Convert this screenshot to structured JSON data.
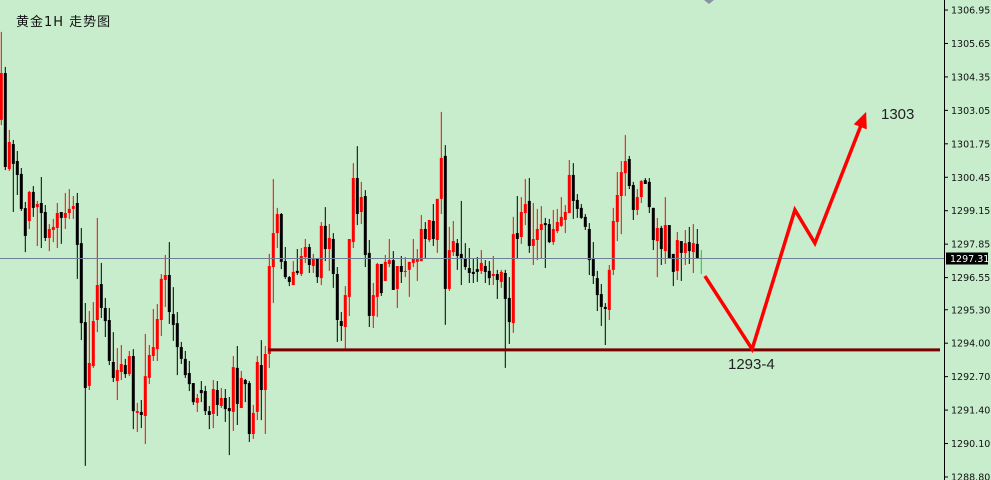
{
  "title": "黄金1H 走势图",
  "colors": {
    "background": "#c7edcc",
    "bull": "#ff0000",
    "bear": "#000000",
    "current": "#00e000",
    "support": "#7a0000",
    "arrow": "#ff0000",
    "price_line": "#708090",
    "axis": "#000000"
  },
  "chart_data": {
    "type": "candlestick",
    "title": "黄金1H 走势图",
    "timeframe": "1H",
    "yaxis_position": "right",
    "ylim": [
      1288.8,
      1307.34
    ],
    "yticks": [
      "1306.95",
      "1305.65",
      "1304.35",
      "1303.05",
      "1301.75",
      "1300.45",
      "1299.15",
      "1297.85",
      "1296.55",
      "1295.30",
      "1294.00",
      "1292.70",
      "1291.40",
      "1290.10",
      "1288.80"
    ],
    "current_price": "1297.31",
    "ohlc_fields": [
      "open",
      "high",
      "low",
      "close"
    ],
    "candles": [
      [
        1302.68,
        1306.1,
        1302.48,
        1304.5
      ],
      [
        1304.5,
        1304.74,
        1300.73,
        1300.85
      ],
      [
        1300.77,
        1302.29,
        1300.69,
        1301.82
      ],
      [
        1301.74,
        1301.9,
        1299.1,
        1300.97
      ],
      [
        1301.08,
        1301.47,
        1299.76,
        1300.54
      ],
      [
        1300.58,
        1300.81,
        1299.14,
        1299.22
      ],
      [
        1299.25,
        1299.49,
        1297.54,
        1298.17
      ],
      [
        1298.75,
        1299.92,
        1298.44,
        1299.88
      ],
      [
        1299.88,
        1300.11,
        1298.91,
        1299.26
      ],
      [
        1299.29,
        1299.53,
        1297.78,
        1299.41
      ],
      [
        1299.45,
        1300.46,
        1297.7,
        1299.06
      ],
      [
        1299.1,
        1299.37,
        1297.97,
        1298.09
      ],
      [
        1298.09,
        1298.63,
        1297.58,
        1298.44
      ],
      [
        1298.4,
        1298.83,
        1297.93,
        1298.52
      ],
      [
        1298.48,
        1299.45,
        1297.7,
        1299.06
      ],
      [
        1299.1,
        1299.1,
        1297.86,
        1298.87
      ],
      [
        1298.87,
        1299.84,
        1298.44,
        1299.06
      ],
      [
        1299.06,
        1299.99,
        1298.83,
        1299.22
      ],
      [
        1299.22,
        1299.72,
        1298.83,
        1299.33
      ],
      [
        1299.45,
        1299.84,
        1296.5,
        1297.82
      ],
      [
        1297.89,
        1298.48,
        1294.12,
        1294.78
      ],
      [
        1294.82,
        1295.56,
        1289.23,
        1292.26
      ],
      [
        1292.34,
        1295.25,
        1292.18,
        1293.23
      ],
      [
        1293.11,
        1295.6,
        1293.04,
        1294.86
      ],
      [
        1294.9,
        1298.87,
        1294.43,
        1296.26
      ],
      [
        1296.3,
        1297.12,
        1294.98,
        1295.37
      ],
      [
        1295.37,
        1295.76,
        1294.24,
        1294.86
      ],
      [
        1294.9,
        1295.37,
        1293.15,
        1293.31
      ],
      [
        1293.27,
        1294.43,
        1292.49,
        1292.65
      ],
      [
        1292.53,
        1293.81,
        1291.79,
        1292.96
      ],
      [
        1292.88,
        1293.93,
        1292.57,
        1293.19
      ],
      [
        1293.15,
        1293.39,
        1292.65,
        1292.8
      ],
      [
        1292.8,
        1293.7,
        1292.72,
        1293.5
      ],
      [
        1293.5,
        1293.77,
        1290.66,
        1291.36
      ],
      [
        1291.29,
        1291.68,
        1290.55,
        1291.36
      ],
      [
        1291.33,
        1291.79,
        1290.7,
        1291.21
      ],
      [
        1291.17,
        1294.36,
        1290.08,
        1292.72
      ],
      [
        1292.65,
        1293.93,
        1292.41,
        1293.54
      ],
      [
        1293.5,
        1295.33,
        1293.31,
        1293.85
      ],
      [
        1293.77,
        1295.52,
        1293.31,
        1294.94
      ],
      [
        1294.9,
        1296.69,
        1294.28,
        1296.5
      ],
      [
        1296.46,
        1297.43,
        1295.41,
        1296.65
      ],
      [
        1296.65,
        1297.93,
        1294.75,
        1295.21
      ],
      [
        1295.13,
        1296.18,
        1294.09,
        1294.71
      ],
      [
        1294.78,
        1295.21,
        1292.76,
        1293.85
      ],
      [
        1293.85,
        1294.05,
        1293.19,
        1293.39
      ],
      [
        1293.39,
        1293.7,
        1292.65,
        1292.76
      ],
      [
        1292.84,
        1293.31,
        1292.14,
        1292.41
      ],
      [
        1292.45,
        1292.45,
        1291.6,
        1291.71
      ],
      [
        1291.68,
        1292.03,
        1291.33,
        1291.87
      ],
      [
        1292.18,
        1292.53,
        1291.71,
        1292.06
      ],
      [
        1292.14,
        1292.34,
        1291.21,
        1291.36
      ],
      [
        1291.36,
        1291.56,
        1290.66,
        1291.21
      ],
      [
        1291.25,
        1292.57,
        1290.7,
        1292.22
      ],
      [
        1292.18,
        1292.53,
        1291.17,
        1291.6
      ],
      [
        1291.56,
        1292.26,
        1291.48,
        1291.87
      ],
      [
        1291.87,
        1292.22,
        1290.94,
        1291.44
      ],
      [
        1291.48,
        1291.91,
        1289.65,
        1291.36
      ],
      [
        1291.33,
        1293.5,
        1290.59,
        1293.07
      ],
      [
        1293.04,
        1293.89,
        1290.82,
        1291.64
      ],
      [
        1291.48,
        1292.92,
        1291.48,
        1292.65
      ],
      [
        1292.57,
        1292.61,
        1291.71,
        1292.41
      ],
      [
        1292.45,
        1292.53,
        1290.16,
        1290.47
      ],
      [
        1290.47,
        1291.6,
        1290.28,
        1291.29
      ],
      [
        1291.33,
        1293.5,
        1291.01,
        1293.27
      ],
      [
        1293.15,
        1294.12,
        1291.01,
        1292.18
      ],
      [
        1292.18,
        1293.89,
        1290.47,
        1293.58
      ],
      [
        1293.58,
        1297.47,
        1293.04,
        1297.0
      ],
      [
        1296.96,
        1300.38,
        1295.56,
        1298.28
      ],
      [
        1298.28,
        1299.26,
        1297.7,
        1299.02
      ],
      [
        1299.02,
        1299.06,
        1296.88,
        1297.16
      ],
      [
        1297.19,
        1297.74,
        1296.5,
        1296.57
      ],
      [
        1296.57,
        1296.61,
        1296.22,
        1296.38
      ],
      [
        1296.26,
        1297.19,
        1296.26,
        1296.77
      ],
      [
        1296.81,
        1297.66,
        1296.65,
        1296.73
      ],
      [
        1296.69,
        1297.7,
        1296.61,
        1297.39
      ],
      [
        1297.35,
        1298.05,
        1297.12,
        1297.74
      ],
      [
        1297.74,
        1297.86,
        1296.73,
        1297.04
      ],
      [
        1297.0,
        1297.47,
        1296.73,
        1297.31
      ],
      [
        1297.31,
        1297.31,
        1296.34,
        1296.57
      ],
      [
        1296.53,
        1298.71,
        1296.26,
        1298.56
      ],
      [
        1298.56,
        1299.29,
        1297.19,
        1297.66
      ],
      [
        1297.66,
        1298.63,
        1296.81,
        1298.09
      ],
      [
        1298.05,
        1298.28,
        1296.15,
        1296.69
      ],
      [
        1296.69,
        1296.96,
        1294.05,
        1294.9
      ],
      [
        1294.86,
        1295.21,
        1294.09,
        1294.67
      ],
      [
        1294.63,
        1296.22,
        1293.74,
        1295.87
      ],
      [
        1295.8,
        1298.05,
        1295.06,
        1298.05
      ],
      [
        1297.93,
        1301.0,
        1297.7,
        1300.42
      ],
      [
        1300.42,
        1301.66,
        1298.59,
        1299.02
      ],
      [
        1299.1,
        1300.27,
        1298.63,
        1299.68
      ],
      [
        1299.72,
        1299.95,
        1296.96,
        1297.43
      ],
      [
        1297.51,
        1298.01,
        1294.63,
        1295.06
      ],
      [
        1295.06,
        1296.34,
        1294.59,
        1295.87
      ],
      [
        1295.8,
        1297.12,
        1295.02,
        1297.08
      ],
      [
        1297.08,
        1297.08,
        1295.84,
        1295.95
      ],
      [
        1296.42,
        1297.43,
        1296.42,
        1297.16
      ],
      [
        1297.08,
        1298.05,
        1296.96,
        1297.23
      ],
      [
        1297.23,
        1297.58,
        1296.07,
        1296.07
      ],
      [
        1296.11,
        1297.0,
        1295.37,
        1297.0
      ],
      [
        1297.0,
        1297.39,
        1296.34,
        1296.77
      ],
      [
        1296.77,
        1297.35,
        1296.57,
        1296.81
      ],
      [
        1296.85,
        1297.16,
        1295.8,
        1297.16
      ],
      [
        1297.12,
        1298.05,
        1296.96,
        1297.31
      ],
      [
        1297.16,
        1297.66,
        1296.42,
        1297.27
      ],
      [
        1297.19,
        1298.98,
        1297.19,
        1298.44
      ],
      [
        1298.44,
        1298.71,
        1297.31,
        1298.05
      ],
      [
        1298.01,
        1298.79,
        1297.93,
        1298.79
      ],
      [
        1298.75,
        1299.41,
        1297.78,
        1298.05
      ],
      [
        1298.01,
        1299.61,
        1297.51,
        1299.61
      ],
      [
        1299.61,
        1302.99,
        1299.02,
        1301.2
      ],
      [
        1301.28,
        1301.7,
        1294.71,
        1296.11
      ],
      [
        1296.11,
        1298.52,
        1296.03,
        1297.62
      ],
      [
        1297.54,
        1298.75,
        1297.39,
        1297.97
      ],
      [
        1297.89,
        1298.05,
        1296.85,
        1297.39
      ],
      [
        1297.47,
        1299.53,
        1296.26,
        1297.27
      ],
      [
        1297.31,
        1297.89,
        1296.85,
        1296.96
      ],
      [
        1296.92,
        1297.7,
        1296.34,
        1296.73
      ],
      [
        1296.77,
        1297.27,
        1296.34,
        1296.69
      ],
      [
        1296.88,
        1297.35,
        1296.38,
        1296.77
      ],
      [
        1296.81,
        1297.62,
        1296.69,
        1297.12
      ],
      [
        1297.0,
        1297.23,
        1296.34,
        1296.77
      ],
      [
        1296.81,
        1297.19,
        1296.26,
        1296.53
      ],
      [
        1296.61,
        1297.39,
        1296.26,
        1296.69
      ],
      [
        1296.69,
        1296.85,
        1295.72,
        1296.46
      ],
      [
        1296.38,
        1296.85,
        1296.15,
        1296.77
      ],
      [
        1296.73,
        1296.85,
        1293.04,
        1295.72
      ],
      [
        1295.76,
        1296.57,
        1293.97,
        1294.82
      ],
      [
        1294.78,
        1298.91,
        1294.4,
        1298.24
      ],
      [
        1298.28,
        1299.72,
        1297.27,
        1298.05
      ],
      [
        1298.13,
        1299.68,
        1297.86,
        1299.1
      ],
      [
        1299.06,
        1300.38,
        1298.59,
        1299.41
      ],
      [
        1299.53,
        1300.42,
        1297.51,
        1297.78
      ],
      [
        1297.78,
        1299.45,
        1297.04,
        1298.05
      ],
      [
        1298.01,
        1299.22,
        1297.23,
        1298.44
      ],
      [
        1298.4,
        1299.33,
        1297.31,
        1298.63
      ],
      [
        1298.67,
        1298.87,
        1296.92,
        1298.59
      ],
      [
        1298.63,
        1298.83,
        1297.89,
        1297.93
      ],
      [
        1297.93,
        1299.18,
        1297.82,
        1298.44
      ],
      [
        1298.36,
        1299.22,
        1298.28,
        1298.71
      ],
      [
        1298.56,
        1299.68,
        1298.52,
        1298.91
      ],
      [
        1298.79,
        1299.37,
        1298.28,
        1299.1
      ],
      [
        1299.06,
        1301.12,
        1299.06,
        1300.54
      ],
      [
        1300.54,
        1301.0,
        1298.83,
        1299.53
      ],
      [
        1299.57,
        1299.8,
        1298.87,
        1299.22
      ],
      [
        1299.26,
        1299.41,
        1298.83,
        1298.87
      ],
      [
        1298.91,
        1299.02,
        1298.4,
        1298.52
      ],
      [
        1298.44,
        1298.67,
        1296.65,
        1297.23
      ],
      [
        1297.27,
        1297.93,
        1296.3,
        1296.61
      ],
      [
        1296.53,
        1296.81,
        1295.25,
        1295.87
      ],
      [
        1295.91,
        1296.3,
        1294.67,
        1295.41
      ],
      [
        1295.41,
        1295.56,
        1293.93,
        1295.33
      ],
      [
        1295.29,
        1297.04,
        1294.9,
        1296.85
      ],
      [
        1296.85,
        1299.26,
        1296.65,
        1298.75
      ],
      [
        1298.71,
        1300.65,
        1297.97,
        1299.76
      ],
      [
        1299.72,
        1301.08,
        1298.24,
        1300.65
      ],
      [
        1300.61,
        1302.09,
        1299.72,
        1301.08
      ],
      [
        1301.16,
        1301.28,
        1299.99,
        1300.11
      ],
      [
        1300.15,
        1300.27,
        1298.79,
        1299.18
      ],
      [
        1299.18,
        1299.99,
        1298.98,
        1299.68
      ],
      [
        1299.68,
        1300.34,
        1299.45,
        1300.3
      ],
      [
        1300.34,
        1300.42,
        1300.19,
        1300.19
      ],
      [
        1300.27,
        1300.42,
        1299.06,
        1299.29
      ],
      [
        1299.26,
        1299.26,
        1297.62,
        1298.01
      ],
      [
        1297.97,
        1298.87,
        1296.57,
        1298.48
      ],
      [
        1298.48,
        1298.56,
        1297.04,
        1297.66
      ],
      [
        1297.58,
        1299.68,
        1297.08,
        1298.59
      ],
      [
        1298.59,
        1298.59,
        1297.31,
        1297.31
      ],
      [
        1297.47,
        1297.47,
        1296.22,
        1296.77
      ],
      [
        1296.81,
        1298.32,
        1296.46,
        1298.01
      ],
      [
        1297.97,
        1297.97,
        1296.42,
        1297.51
      ],
      [
        1297.51,
        1298.4,
        1297.04,
        1297.89
      ],
      [
        1297.93,
        1298.52,
        1297.08,
        1297.58
      ],
      [
        1297.54,
        1298.63,
        1296.73,
        1297.89
      ],
      [
        1297.86,
        1298.44,
        1297.27,
        1297.31
      ],
      [
        1297.31,
        1297.62,
        1296.69,
        1297.31
      ]
    ],
    "support_line": {
      "price": 1293.74,
      "from_bar": 68,
      "label": "1293-4"
    },
    "forecast_arrow": {
      "points_bar_price": [
        [
          176.9,
          1296.61
        ],
        [
          188.7,
          1293.77
        ],
        [
          199.4,
          1299.18
        ],
        [
          204.4,
          1297.89
        ],
        [
          217.2,
          1302.99
        ]
      ],
      "label": "1303"
    }
  }
}
